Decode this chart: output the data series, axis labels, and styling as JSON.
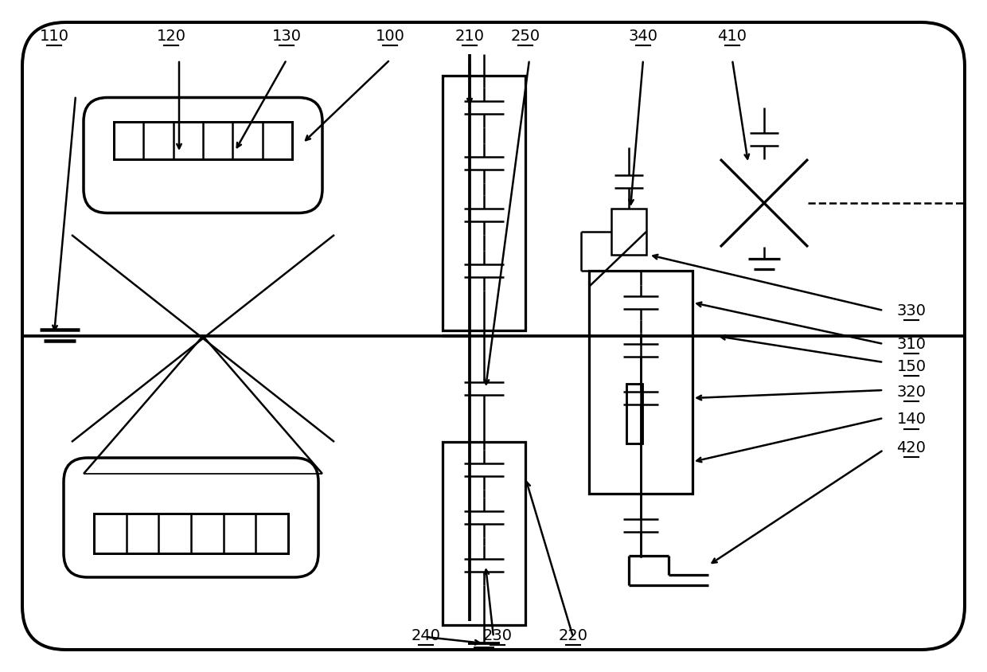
{
  "bg_color": "#ffffff",
  "lc": "#000000",
  "lw": 1.8,
  "fig_w": 12.4,
  "fig_h": 8.44,
  "dpi": 100
}
